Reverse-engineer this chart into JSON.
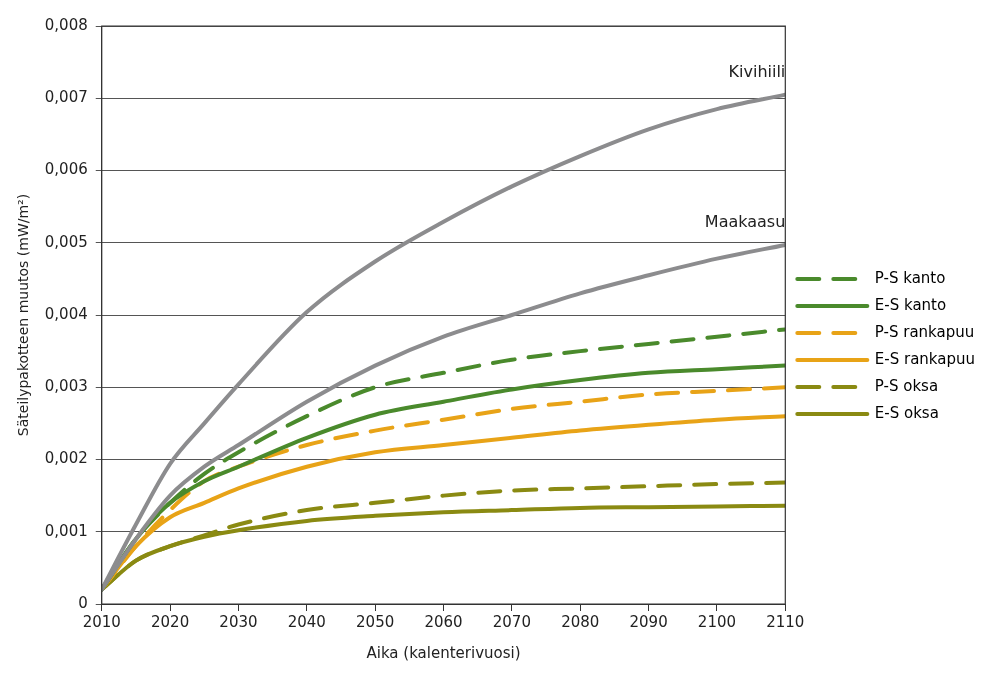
{
  "chart_data": {
    "type": "line",
    "xlabel": "Aika (kalenterivuosi)",
    "ylabel": "Säteilypakotteen muutos (mW/m²)",
    "x": [
      2010,
      2015,
      2020,
      2025,
      2030,
      2040,
      2050,
      2060,
      2070,
      2080,
      2090,
      2100,
      2110
    ],
    "series": [
      {
        "color": "#8c8c8e",
        "line_style": "solid",
        "values": [
          0.0002,
          0.0011,
          0.00194,
          0.0025,
          0.00304,
          0.00404,
          0.00474,
          0.00529,
          0.00578,
          0.0062,
          0.00657,
          0.00685,
          0.00705
        ]
      },
      {
        "color": "#8c8c8e",
        "line_style": "solid",
        "values": [
          0.0002,
          0.0009,
          0.0015,
          0.0019,
          0.0022,
          0.0028,
          0.0033,
          0.0037,
          0.004,
          0.0043,
          0.00455,
          0.00478,
          0.00497
        ]
      },
      {
        "name": "P-S kanto",
        "color": "#4a8a2c",
        "line_style": "dashed",
        "values": [
          0.0002,
          0.0009,
          0.0014,
          0.0018,
          0.0021,
          0.0026,
          0.003,
          0.0032,
          0.00338,
          0.0035,
          0.0036,
          0.0037,
          0.0038
        ]
      },
      {
        "name": "E-S kanto",
        "color": "#4a8a2c",
        "line_style": "solid",
        "values": [
          0.0002,
          0.0009,
          0.0014,
          0.0017,
          0.0019,
          0.0023,
          0.00262,
          0.0028,
          0.00297,
          0.0031,
          0.0032,
          0.00325,
          0.0033
        ]
      },
      {
        "name": "P-S rankapuu",
        "color": "#e8a317",
        "line_style": "dashed",
        "values": [
          0.0002,
          0.0008,
          0.0013,
          0.0017,
          0.0019,
          0.0022,
          0.0024,
          0.00255,
          0.0027,
          0.0028,
          0.0029,
          0.00295,
          0.003
        ]
      },
      {
        "name": "E-S rankapuu",
        "color": "#e8a317",
        "line_style": "solid",
        "values": [
          0.0002,
          0.0008,
          0.0012,
          0.0014,
          0.0016,
          0.0019,
          0.0021,
          0.0022,
          0.0023,
          0.0024,
          0.00248,
          0.00255,
          0.0026
        ]
      },
      {
        "name": "P-S oksa",
        "color": "#8a8a12",
        "line_style": "dashed",
        "values": [
          0.0002,
          0.0006,
          0.0008,
          0.00095,
          0.0011,
          0.0013,
          0.0014,
          0.0015,
          0.00157,
          0.0016,
          0.00163,
          0.00166,
          0.00168
        ]
      },
      {
        "name": "E-S oksa",
        "color": "#8a8a12",
        "line_style": "solid",
        "values": [
          0.0002,
          0.0006,
          0.0008,
          0.00093,
          0.00102,
          0.00115,
          0.00122,
          0.00127,
          0.0013,
          0.00133,
          0.00134,
          0.00135,
          0.00136
        ]
      }
    ],
    "xlim": [
      2010,
      2110
    ],
    "xticks": [
      2010,
      2020,
      2030,
      2040,
      2050,
      2060,
      2070,
      2080,
      2090,
      2100,
      2110
    ],
    "ylim": [
      0,
      0.008
    ],
    "yticks": [
      0,
      {
        "value": 0.001,
        "label": "0,001"
      },
      {
        "value": 0.002,
        "label": "0,002"
      },
      {
        "value": 0.003,
        "label": "0,003"
      },
      {
        "value": 0.004,
        "label": "0,004"
      },
      {
        "value": 0.005,
        "label": "0,005"
      },
      {
        "value": 0.006,
        "label": "0,006"
      },
      {
        "value": 0.007,
        "label": "0,007"
      },
      {
        "value": 0.008,
        "label": "0,008"
      }
    ],
    "annotations": [
      {
        "text": "Kivihiili",
        "x": 2110,
        "y": 0.00705
      },
      {
        "text": "Maakaasu",
        "x": 2110,
        "y": 0.00497
      }
    ],
    "grid": "y",
    "legend": "right",
    "marker": "none"
  }
}
